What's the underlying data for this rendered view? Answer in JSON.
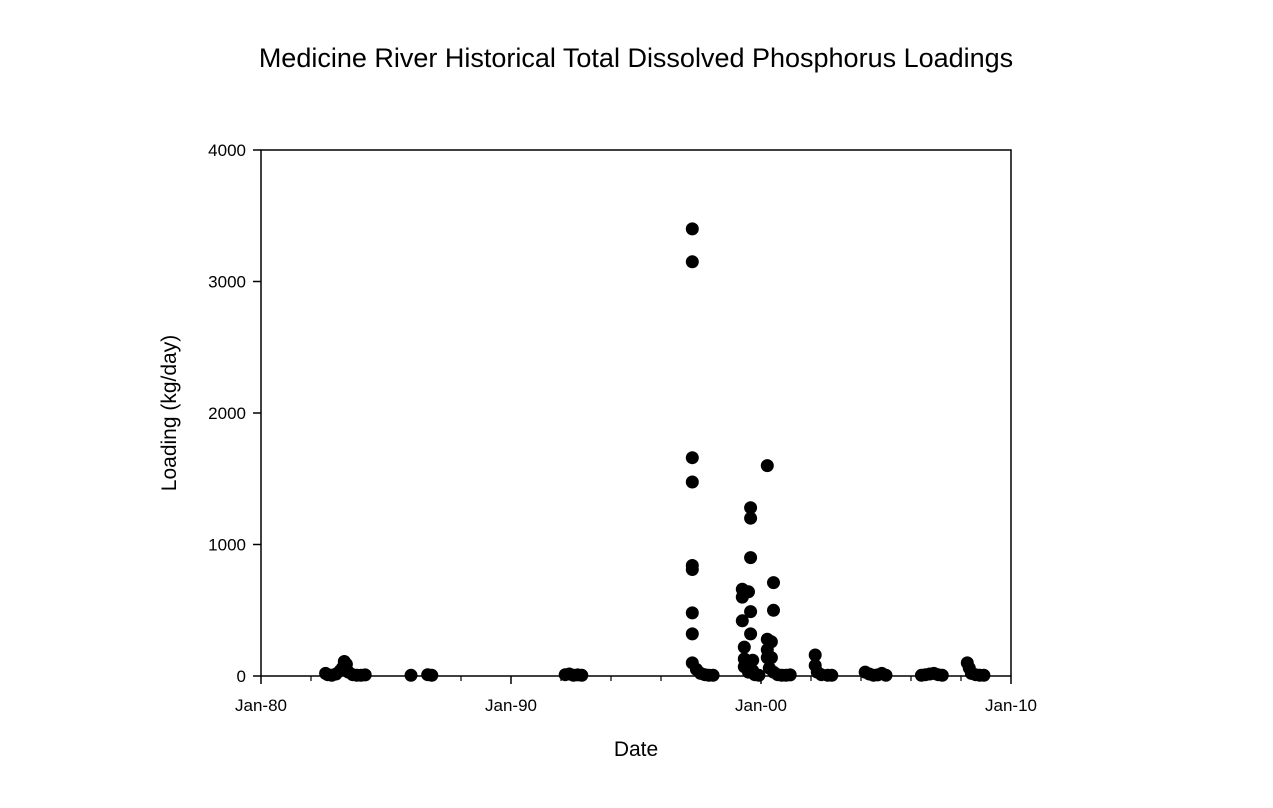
{
  "chart_data": {
    "type": "scatter",
    "title": "Medicine River Historical Total Dissolved Phosphorus Loadings",
    "xlabel": "Date",
    "ylabel": "Loading (kg/day)",
    "xlim": [
      "1980-01",
      "2010-01"
    ],
    "ylim": [
      0,
      4000
    ],
    "x_ticks": [
      {
        "date": "1980-01",
        "label": "Jan-80"
      },
      {
        "date": "1990-01",
        "label": "Jan-90"
      },
      {
        "date": "2000-01",
        "label": "Jan-00"
      },
      {
        "date": "2010-01",
        "label": "Jan-10"
      }
    ],
    "x_minor_ticks": [
      "1982-01",
      "1984-01",
      "1986-01",
      "1988-01",
      "1992-01",
      "1994-01",
      "1996-01",
      "1998-01",
      "2002-01",
      "2004-01",
      "2006-01",
      "2008-01"
    ],
    "y_ticks": [
      0,
      1000,
      2000,
      3000,
      4000
    ],
    "grid": false,
    "legend": false,
    "marker_color": "#000000",
    "points": [
      {
        "x": "1982-08",
        "y": 20
      },
      {
        "x": "1982-09",
        "y": 10
      },
      {
        "x": "1982-11",
        "y": 5
      },
      {
        "x": "1983-01",
        "y": 15
      },
      {
        "x": "1983-03",
        "y": 40
      },
      {
        "x": "1983-04",
        "y": 60
      },
      {
        "x": "1983-05",
        "y": 110
      },
      {
        "x": "1983-06",
        "y": 90
      },
      {
        "x": "1983-07",
        "y": 30
      },
      {
        "x": "1983-09",
        "y": 10
      },
      {
        "x": "1983-11",
        "y": 5
      },
      {
        "x": "1984-01",
        "y": 5
      },
      {
        "x": "1984-03",
        "y": 8
      },
      {
        "x": "1986-01",
        "y": 5
      },
      {
        "x": "1986-09",
        "y": 10
      },
      {
        "x": "1986-11",
        "y": 5
      },
      {
        "x": "1992-03",
        "y": 10
      },
      {
        "x": "1992-05",
        "y": 15
      },
      {
        "x": "1992-07",
        "y": 5
      },
      {
        "x": "1992-09",
        "y": 8
      },
      {
        "x": "1992-11",
        "y": 5
      },
      {
        "x": "1997-04",
        "y": 3400
      },
      {
        "x": "1997-04",
        "y": 3150
      },
      {
        "x": "1997-04",
        "y": 1660
      },
      {
        "x": "1997-04",
        "y": 1475
      },
      {
        "x": "1997-04",
        "y": 840
      },
      {
        "x": "1997-04",
        "y": 810
      },
      {
        "x": "1997-04",
        "y": 480
      },
      {
        "x": "1997-04",
        "y": 320
      },
      {
        "x": "1997-04",
        "y": 100
      },
      {
        "x": "1997-06",
        "y": 50
      },
      {
        "x": "1997-08",
        "y": 20
      },
      {
        "x": "1997-10",
        "y": 10
      },
      {
        "x": "1997-12",
        "y": 5
      },
      {
        "x": "1998-02",
        "y": 5
      },
      {
        "x": "1999-04",
        "y": 660
      },
      {
        "x": "1999-04",
        "y": 600
      },
      {
        "x": "1999-04",
        "y": 420
      },
      {
        "x": "1999-05",
        "y": 220
      },
      {
        "x": "1999-05",
        "y": 130
      },
      {
        "x": "1999-05",
        "y": 70
      },
      {
        "x": "1999-07",
        "y": 640
      },
      {
        "x": "1999-07",
        "y": 30
      },
      {
        "x": "1999-08",
        "y": 1280
      },
      {
        "x": "1999-08",
        "y": 1200
      },
      {
        "x": "1999-08",
        "y": 900
      },
      {
        "x": "1999-08",
        "y": 490
      },
      {
        "x": "1999-08",
        "y": 320
      },
      {
        "x": "1999-09",
        "y": 120
      },
      {
        "x": "1999-09",
        "y": 40
      },
      {
        "x": "1999-10",
        "y": 10
      },
      {
        "x": "1999-12",
        "y": 5
      },
      {
        "x": "2000-04",
        "y": 1600
      },
      {
        "x": "2000-04",
        "y": 280
      },
      {
        "x": "2000-04",
        "y": 200
      },
      {
        "x": "2000-04",
        "y": 140
      },
      {
        "x": "2000-05",
        "y": 60
      },
      {
        "x": "2000-06",
        "y": 260
      },
      {
        "x": "2000-06",
        "y": 140
      },
      {
        "x": "2000-07",
        "y": 710
      },
      {
        "x": "2000-07",
        "y": 500
      },
      {
        "x": "2000-07",
        "y": 30
      },
      {
        "x": "2000-09",
        "y": 10
      },
      {
        "x": "2000-11",
        "y": 5
      },
      {
        "x": "2001-01",
        "y": 5
      },
      {
        "x": "2001-03",
        "y": 8
      },
      {
        "x": "2002-03",
        "y": 160
      },
      {
        "x": "2002-03",
        "y": 80
      },
      {
        "x": "2002-04",
        "y": 30
      },
      {
        "x": "2002-06",
        "y": 10
      },
      {
        "x": "2002-09",
        "y": 5
      },
      {
        "x": "2002-11",
        "y": 5
      },
      {
        "x": "2004-03",
        "y": 30
      },
      {
        "x": "2004-05",
        "y": 15
      },
      {
        "x": "2004-07",
        "y": 5
      },
      {
        "x": "2004-09",
        "y": 8
      },
      {
        "x": "2004-11",
        "y": 20
      },
      {
        "x": "2005-01",
        "y": 5
      },
      {
        "x": "2006-06",
        "y": 5
      },
      {
        "x": "2006-08",
        "y": 10
      },
      {
        "x": "2006-10",
        "y": 15
      },
      {
        "x": "2006-12",
        "y": 20
      },
      {
        "x": "2007-02",
        "y": 10
      },
      {
        "x": "2007-04",
        "y": 5
      },
      {
        "x": "2008-04",
        "y": 100
      },
      {
        "x": "2008-05",
        "y": 60
      },
      {
        "x": "2008-06",
        "y": 20
      },
      {
        "x": "2008-08",
        "y": 10
      },
      {
        "x": "2008-10",
        "y": 5
      },
      {
        "x": "2008-12",
        "y": 5
      }
    ]
  }
}
